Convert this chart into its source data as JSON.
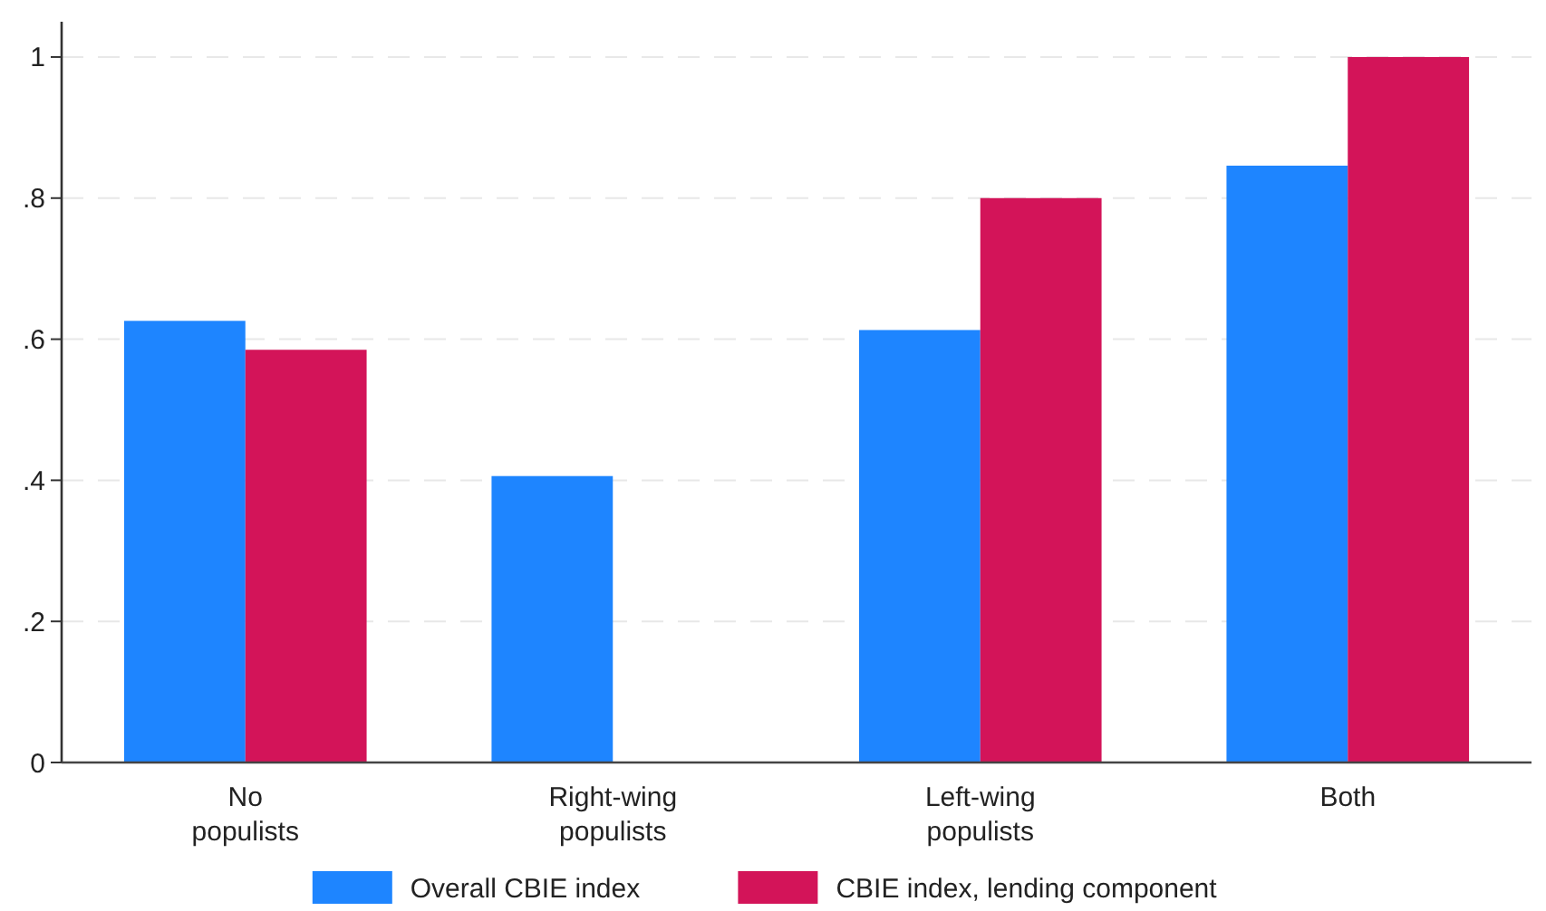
{
  "chart_data": {
    "type": "bar",
    "categories": [
      "No populists",
      "Right-wing populists",
      "Left-wing populists",
      "Both"
    ],
    "series": [
      {
        "name": "Overall CBIE index",
        "color": "#1e85ff",
        "values": [
          0.626,
          0.406,
          0.613,
          0.846
        ]
      },
      {
        "name": "CBIE index, lending component",
        "color": "#d31459",
        "values": [
          0.585,
          null,
          0.8,
          1.0
        ]
      }
    ],
    "ylim": [
      0,
      1.05
    ],
    "yticks": [
      {
        "value": 0,
        "label": "0"
      },
      {
        "value": 0.2,
        "label": ".2"
      },
      {
        "value": 0.4,
        "label": ".4"
      },
      {
        "value": 0.6,
        "label": ".6"
      },
      {
        "value": 0.8,
        "label": ".8"
      },
      {
        "value": 1,
        "label": "1"
      }
    ],
    "grid": "y",
    "legend": "bottom"
  }
}
